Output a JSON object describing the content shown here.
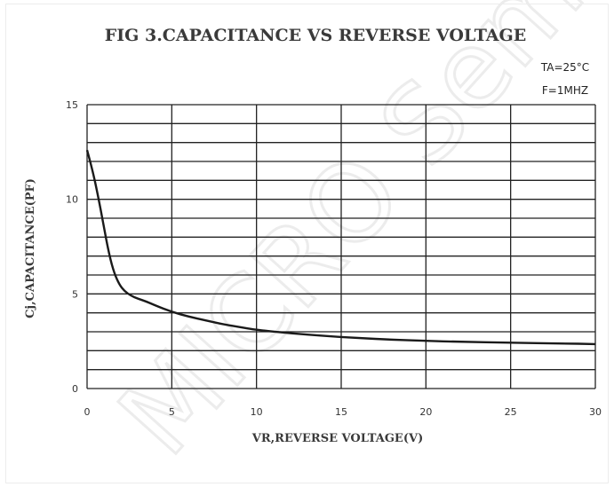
{
  "chart_data": {
    "type": "line",
    "title": "FIG 3.CAPACITANCE  VS REVERSE  VOLTAGE",
    "conditions": [
      "TA=25°C",
      "F=1MHZ"
    ],
    "xlabel": "VR,REVERSE VOLTAGE(V)",
    "ylabel": "Cj,CAPACITANCE(PF)",
    "xlim": [
      0,
      30
    ],
    "ylim": [
      0,
      15
    ],
    "x_ticks": [
      0,
      5,
      10,
      15,
      20,
      25,
      30
    ],
    "y_ticks": [
      0,
      5,
      10,
      15
    ],
    "x_gridlines": [
      0,
      5,
      10,
      15,
      20,
      25,
      30
    ],
    "y_gridlines": [
      0,
      1,
      2,
      3,
      4,
      5,
      6,
      7,
      8,
      9,
      10,
      11,
      12,
      13,
      14,
      15
    ],
    "series": [
      {
        "x": [
          0,
          0.3,
          0.6,
          1.0,
          1.3,
          1.6,
          1.9,
          2.2,
          2.6,
          3.0,
          3.5,
          4.0,
          5.0,
          6.0,
          7.0,
          8.0,
          9.0,
          10.0,
          12.0,
          14.0,
          16.0,
          18.0,
          20.0,
          22.0,
          25.0,
          28.0,
          30.0
        ],
        "y": [
          12.6,
          11.6,
          10.4,
          8.5,
          7.1,
          6.1,
          5.5,
          5.15,
          4.9,
          4.75,
          4.6,
          4.4,
          4.05,
          3.8,
          3.6,
          3.4,
          3.25,
          3.1,
          2.92,
          2.78,
          2.67,
          2.58,
          2.52,
          2.47,
          2.42,
          2.38,
          2.35
        ]
      }
    ]
  },
  "watermark": "MICRO Semi"
}
